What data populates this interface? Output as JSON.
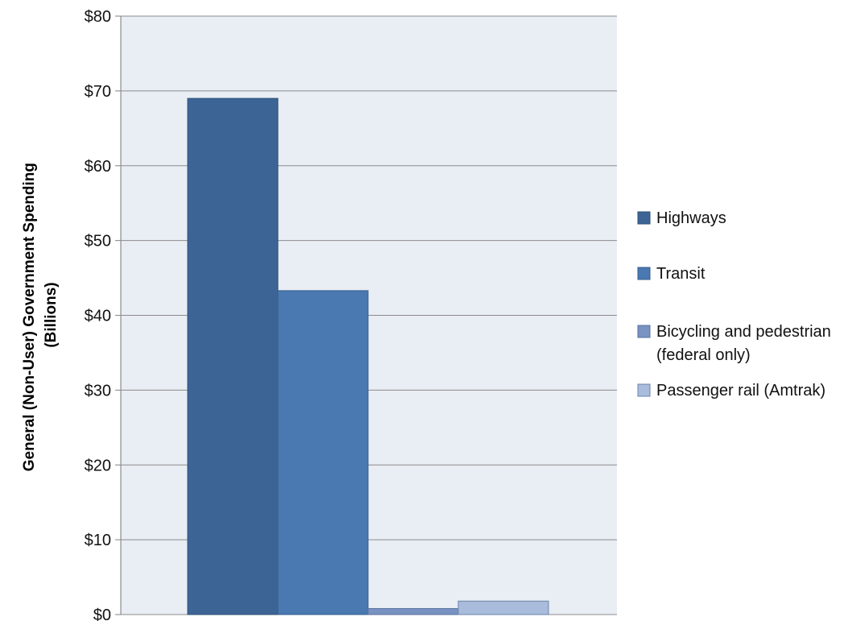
{
  "chart_data": {
    "type": "bar",
    "title": "",
    "xlabel": "",
    "ylabel_lines": [
      "General (Non-User) Government Spending",
      "(Billions)"
    ],
    "ylim": [
      0,
      80
    ],
    "yticks": [
      0,
      10,
      20,
      30,
      40,
      50,
      60,
      70,
      80
    ],
    "ytick_prefix": "$",
    "grid": true,
    "legend_position": "right",
    "plot_background": "#e9edf4",
    "gridline_color": "#8c8c8c",
    "series": [
      {
        "name_lines": [
          "Highways"
        ],
        "value": 69,
        "color": "#3c6595",
        "border": "#2e4f76"
      },
      {
        "name_lines": [
          "Transit"
        ],
        "value": 43.3,
        "color": "#4a78b0",
        "border": "#365e8e"
      },
      {
        "name_lines": [
          "Bicycling and pedestrian",
          "(federal only)"
        ],
        "value": 0.8,
        "color": "#7892c2",
        "border": "#55709f"
      },
      {
        "name_lines": [
          "Passenger rail (Amtrak)"
        ],
        "value": 1.8,
        "color": "#a9bcdb",
        "border": "#6b84ad"
      }
    ]
  }
}
